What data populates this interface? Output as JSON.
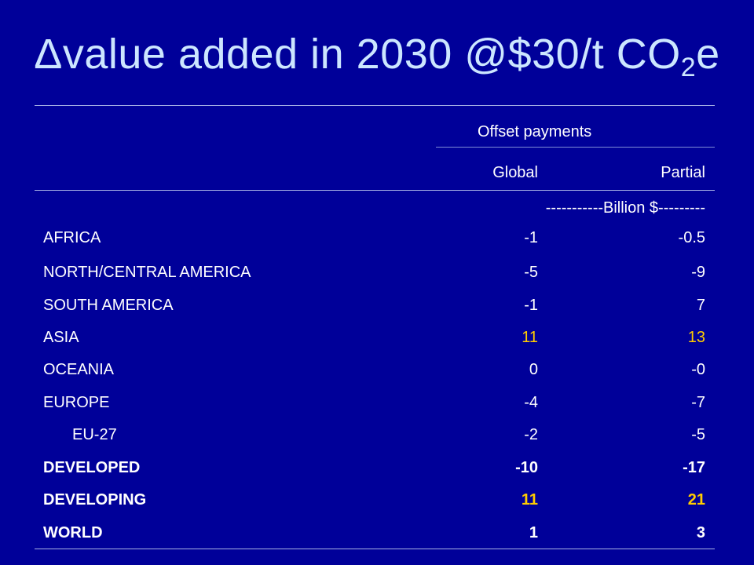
{
  "slide": {
    "title_main": "Δvalue added in 2030 @$30/t CO",
    "title_sub": "2",
    "title_tail": "e"
  },
  "table": {
    "group_header": "Offset payments",
    "col_global": "Global",
    "col_partial": "Partial",
    "unit_row": "-----------Billion $---------",
    "rows": [
      {
        "label": "AFRICA",
        "global": "-1",
        "partial": "-0.5"
      },
      {
        "label": "NORTH/CENTRAL AMERICA",
        "global": "-5",
        "partial": "-9"
      },
      {
        "label": "SOUTH AMERICA",
        "global": "-1",
        "partial": "7"
      },
      {
        "label": "ASIA",
        "global": "11",
        "partial": "13"
      },
      {
        "label": "OCEANIA",
        "global": "0",
        "partial": "-0"
      },
      {
        "label": "EUROPE",
        "global": "-4",
        "partial": "-7"
      },
      {
        "label": "EU-27",
        "global": "-2",
        "partial": "-5"
      },
      {
        "label": "DEVELOPED",
        "global": "-10",
        "partial": "-17"
      },
      {
        "label": "DEVELOPING",
        "global": "11",
        "partial": "21"
      },
      {
        "label": "WORLD",
        "global": "1",
        "partial": "3"
      }
    ]
  },
  "colors": {
    "background": "#000099",
    "title": "#cce6ff",
    "text": "#ffffff",
    "highlight": "#ffcc00"
  }
}
